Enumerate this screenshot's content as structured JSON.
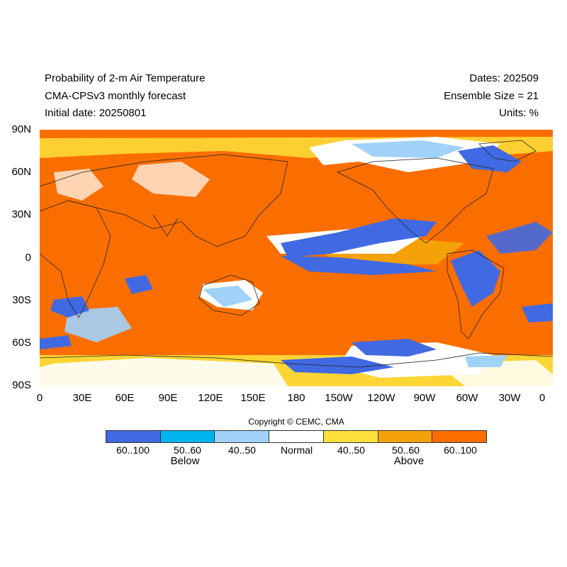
{
  "header": {
    "title": "Probability of 2-m Air Temperature",
    "model": "CMA-CPSv3 monthly forecast",
    "initial_date": "Initial date: 20250801",
    "dates": "Dates: 202509",
    "ensemble": "Ensemble Size = 21",
    "units": "Units: %"
  },
  "axes": {
    "lat_labels": [
      "90N",
      "60N",
      "30N",
      "0",
      "30S",
      "60S",
      "90S"
    ],
    "lon_labels": [
      "0",
      "30E",
      "60E",
      "90E",
      "120E",
      "150E",
      "180",
      "150W",
      "120W",
      "90W",
      "60W",
      "30W",
      "0"
    ]
  },
  "copyright": "Copyright © CEMC, CMA",
  "legend": {
    "bins": [
      {
        "label": "60..100",
        "color": "#4169e1"
      },
      {
        "label": "50..60",
        "color": "#00b4f0"
      },
      {
        "label": "40..50",
        "color": "#a0d2fa"
      },
      {
        "label": "Normal",
        "color": "#ffffff"
      },
      {
        "label": "40..50",
        "color": "#fde03a"
      },
      {
        "label": "50..60",
        "color": "#f5a10a"
      },
      {
        "label": "60..100",
        "color": "#fa6e00"
      }
    ],
    "below_label": "Below",
    "above_label": "Above"
  },
  "map": {
    "background_color": "#fa6e00",
    "regions": [
      {
        "category": "below_strong",
        "color": "#4169e1",
        "lon": -140,
        "lat": 10
      },
      {
        "category": "below_strong",
        "color": "#4169e1",
        "lon": -62,
        "lat": -15
      },
      {
        "category": "below_strong",
        "color": "#4169e1",
        "lon": -110,
        "lat": -72
      },
      {
        "category": "below_strong",
        "color": "#4169e1",
        "lon": -95,
        "lat": 68
      },
      {
        "category": "normal",
        "color": "#ffffff",
        "lon": -150,
        "lat": 72
      },
      {
        "category": "normal",
        "color": "#ffffff",
        "lon": 50,
        "lat": 72
      },
      {
        "category": "normal",
        "color": "#ffffff",
        "lon": 140,
        "lat": -22
      },
      {
        "category": "normal",
        "color": "#ffffff",
        "lon": -160,
        "lat": -70
      }
    ]
  }
}
